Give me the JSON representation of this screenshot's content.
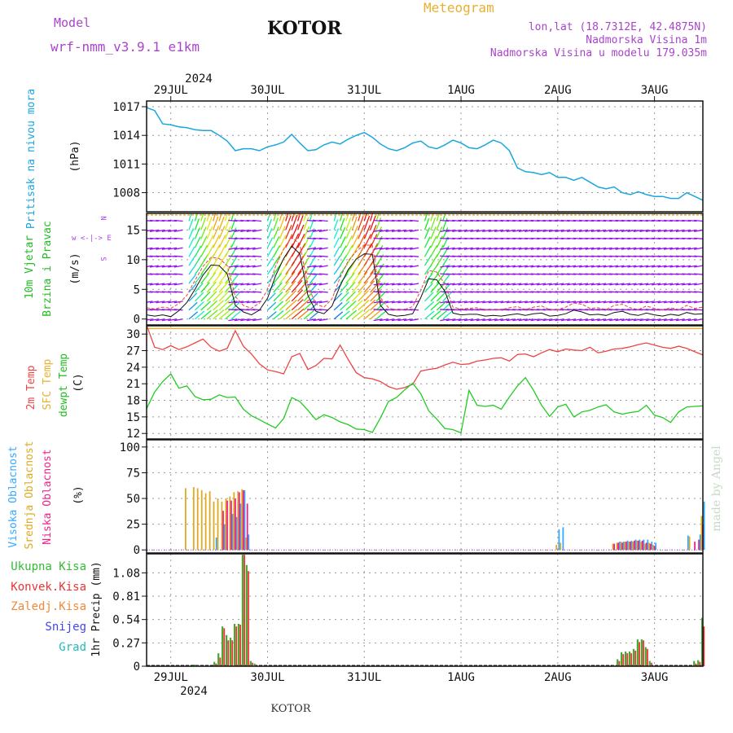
{
  "header": {
    "model_label": "Model",
    "model_name": "wrf-nmm_v3.9.1 e1km",
    "location": "KOTOR",
    "product": "Meteogram",
    "coords": "lon,lat (18.7312E, 42.4875N)",
    "elevation": "Nadmorska Visina 1m",
    "model_elevation": "Nadmorska Visina u modelu 179.035m",
    "footer_location": "KOTOR",
    "credit": "made by Angel"
  },
  "colors": {
    "pressure": "#1aa6e0",
    "temp2m": "#ee4444",
    "sfc_temp": "#e8b030",
    "dewpoint": "#22cc22",
    "high_cloud": "#33aaff",
    "mid_cloud": "#ddaa22",
    "low_cloud": "#ee2288",
    "total_precip": "#44aa33",
    "conv_precip": "#ee3333",
    "snow": "#4444ee",
    "hail": "#22bbbb",
    "wind_axis": "#aa44ee",
    "header_purple": "#aa44cc",
    "header_gold": "#e8b030"
  },
  "time_axis": {
    "top_year": "2024",
    "bottom_year": "2024",
    "days": [
      "29JUL",
      "30JUL",
      "31JUL",
      "1AUG",
      "2AUG",
      "3AUG"
    ],
    "start_hour": -6,
    "end_hour": 132
  },
  "panels": {
    "pressure": {
      "label_main": "Pritisak na nivou mora",
      "unit": "(hPa)",
      "ylim": [
        1006,
        1017.6
      ],
      "ticks": [
        1008,
        1011,
        1014,
        1017
      ]
    },
    "wind": {
      "label_line1": "10m Vjetar",
      "label_line2": "Brzina i Pravac",
      "unit": "(m/s)",
      "compass": "w <-|-> E",
      "compass_n": "N",
      "compass_s": "S",
      "ylim": [
        -1,
        17.8
      ],
      "ticks": [
        0,
        5,
        10,
        15
      ]
    },
    "temp": {
      "label_1": "2m Temp",
      "label_2": "SFC Temp",
      "label_3": "dewpt Temp",
      "unit": "(C)",
      "ylim": [
        11,
        31.5
      ],
      "ticks": [
        12,
        15,
        18,
        21,
        24,
        27,
        30
      ]
    },
    "cloud": {
      "label_1": "Visoka Oblacnost",
      "label_2": "Srednja Oblacnost",
      "label_3": "Niska Oblacnost",
      "unit": "(%)",
      "ylim": [
        -3,
        107
      ],
      "ticks": [
        0,
        25,
        50,
        75,
        100
      ]
    },
    "precip": {
      "legend_total": "Ukupna Kisa",
      "legend_conv": "Konvek.Kisa",
      "legend_frozen": "Zaledj.Kisa",
      "legend_snow": "Snijeg",
      "legend_hail": "Grad",
      "unit": "1hr Precip (mm)",
      "ylim": [
        0,
        1.3
      ],
      "ticks": [
        "0",
        "0.27",
        "0.54",
        "0.81",
        "1.08"
      ]
    }
  },
  "chart_data": [
    {
      "type": "line",
      "panel": "pressure",
      "ylabel": "Pritisak na nivou mora (hPa)",
      "x": [
        -6,
        -4,
        -2,
        0,
        2,
        4,
        6,
        8,
        10,
        12,
        14,
        16,
        18,
        20,
        22,
        24,
        26,
        28,
        30,
        32,
        34,
        36,
        38,
        40,
        42,
        44,
        46,
        48,
        50,
        52,
        54,
        56,
        58,
        60,
        62,
        64,
        66,
        68,
        70,
        72,
        74,
        76,
        78,
        80,
        82,
        84,
        86,
        88,
        90,
        92,
        94,
        96,
        98,
        100,
        102,
        104,
        106,
        108,
        110,
        112,
        114,
        116,
        118,
        120,
        122,
        124,
        126,
        128,
        130,
        132
      ],
      "series": [
        {
          "values": [
            1016.9,
            1016.6,
            1015.2,
            1015.1,
            1014.9,
            1014.8,
            1014.6,
            1014.5,
            1014.5,
            1014.0,
            1013.4,
            1012.4,
            1012.6,
            1012.6,
            1012.4,
            1012.8,
            1013.0,
            1013.3,
            1014.1,
            1013.2,
            1012.4,
            1012.5,
            1013.0,
            1013.3,
            1013.1,
            1013.6,
            1014.0,
            1014.3,
            1013.8,
            1013.1,
            1012.6,
            1012.4,
            1012.7,
            1013.2,
            1013.4,
            1012.8,
            1012.6,
            1013.0,
            1013.5,
            1013.2,
            1012.7,
            1012.6,
            1013.0,
            1013.5,
            1013.2,
            1012.4,
            1010.6,
            1010.2,
            1010.1,
            1009.9,
            1010.1,
            1009.6,
            1009.6,
            1009.3,
            1009.6,
            1009.1,
            1008.6,
            1008.4,
            1008.6,
            1008.0,
            1007.8,
            1008.1,
            1007.8,
            1007.6,
            1007.6,
            1007.4,
            1007.4,
            1008.0,
            1007.6,
            1007.2
          ]
        }
      ]
    },
    {
      "type": "line",
      "panel": "wind",
      "ylabel": "10m Vjetar Brzina i Pravac (m/s)",
      "x": [
        -6,
        -4,
        -2,
        0,
        2,
        4,
        6,
        8,
        10,
        12,
        14,
        16,
        18,
        20,
        22,
        24,
        26,
        28,
        30,
        32,
        34,
        36,
        38,
        40,
        42,
        44,
        46,
        48,
        50,
        52,
        54,
        56,
        58,
        60,
        62,
        64,
        66,
        68,
        70,
        72,
        74,
        76,
        78,
        80,
        82,
        84,
        86,
        88,
        90,
        92,
        94,
        96,
        98,
        100,
        102,
        104,
        106,
        108,
        110,
        112,
        114,
        116,
        118,
        120,
        122,
        124,
        126,
        128,
        130,
        132
      ],
      "series": [
        {
          "values": [
            0.7,
            0.5,
            0.7,
            0.4,
            1.4,
            2.8,
            5.0,
            7.4,
            9.1,
            9.0,
            7.6,
            2.3,
            1.2,
            0.7,
            1.5,
            3.5,
            7.3,
            10.2,
            12.3,
            11.0,
            4.0,
            1.3,
            0.9,
            2.2,
            5.6,
            8.3,
            10.1,
            11.0,
            10.9,
            2.3,
            0.8,
            0.5,
            0.6,
            0.9,
            3.6,
            6.8,
            6.6,
            4.7,
            1.0,
            0.7,
            0.8,
            0.8,
            0.5,
            0.6,
            0.5,
            0.7,
            0.9,
            0.6,
            0.9,
            1.0,
            0.5,
            0.6,
            0.9,
            1.5,
            1.2,
            0.7,
            0.8,
            0.6,
            1.1,
            1.3,
            0.8,
            0.6,
            1.0,
            0.7,
            0.5,
            0.8,
            0.6,
            1.1,
            0.8,
            0.9
          ]
        },
        {
          "values": [
            1.9,
            1.7,
            2.0,
            1.8,
            2.6,
            4.0,
            6.5,
            8.9,
            10.4,
            10.2,
            9.0,
            3.8,
            2.3,
            1.8,
            2.7,
            4.9,
            8.9,
            11.8,
            13.8,
            12.6,
            5.6,
            2.5,
            2.0,
            3.4,
            7.0,
            9.8,
            11.4,
            12.5,
            12.4,
            3.6,
            1.9,
            1.5,
            1.6,
            2.1,
            4.8,
            8.2,
            7.9,
            5.9,
            2.0,
            1.7,
            1.8,
            1.9,
            1.5,
            1.6,
            1.6,
            1.9,
            2.1,
            1.6,
            2.0,
            2.2,
            1.6,
            1.6,
            2.0,
            2.7,
            2.5,
            1.8,
            1.9,
            1.6,
            2.3,
            2.5,
            1.9,
            1.6,
            2.2,
            1.8,
            1.5,
            1.9,
            1.6,
            2.3,
            1.8,
            2.0
          ]
        }
      ]
    },
    {
      "type": "line",
      "panel": "temp",
      "ylabel": "(C)",
      "x": [
        -6,
        -4,
        -2,
        0,
        2,
        4,
        6,
        8,
        10,
        12,
        14,
        16,
        18,
        20,
        22,
        24,
        26,
        28,
        30,
        32,
        34,
        36,
        38,
        40,
        42,
        44,
        46,
        48,
        50,
        52,
        54,
        56,
        58,
        60,
        62,
        64,
        66,
        68,
        70,
        72,
        74,
        76,
        78,
        80,
        82,
        84,
        86,
        88,
        90,
        92,
        94,
        96,
        98,
        100,
        102,
        104,
        106,
        108,
        110,
        112,
        114,
        116,
        118,
        120,
        122,
        124,
        126,
        128,
        130,
        132
      ],
      "series": [
        {
          "values": [
            31.6,
            27.6,
            27.2,
            27.9,
            27.2,
            27.7,
            28.4,
            29.1,
            27.6,
            26.9,
            27.4,
            30.6,
            27.8,
            26.4,
            24.6,
            23.5,
            23.2,
            22.8,
            25.9,
            26.5,
            23.6,
            24.3,
            25.6,
            25.5,
            28.0,
            25.4,
            23.0,
            22.1,
            21.9,
            21.4,
            20.5,
            20.0,
            20.3,
            20.9,
            23.3,
            23.6,
            23.8,
            24.4,
            24.9,
            24.5,
            24.6,
            25.1,
            25.3,
            25.6,
            25.7,
            25.1,
            26.3,
            26.4,
            25.9,
            26.6,
            27.2,
            26.8,
            27.3,
            27.1,
            27.0,
            27.6,
            26.6,
            26.9,
            27.3,
            27.4,
            27.7,
            28.1,
            28.4,
            28.0,
            27.6,
            27.4,
            27.8,
            27.4,
            26.8,
            26.2
          ]
        },
        {
          "values": [
            16.5,
            19.5,
            21.4,
            22.8,
            20.2,
            20.6,
            18.7,
            18.1,
            18.2,
            19.0,
            18.5,
            18.6,
            16.4,
            15.2,
            14.5,
            13.7,
            13.0,
            14.7,
            18.5,
            17.8,
            16.2,
            14.5,
            15.4,
            14.9,
            14.1,
            13.6,
            12.8,
            12.7,
            12.2,
            14.8,
            17.8,
            18.5,
            19.9,
            21.1,
            19.2,
            16.1,
            14.6,
            12.9,
            12.7,
            12.1,
            19.8,
            17.1,
            16.9,
            17.1,
            16.4,
            18.6,
            20.6,
            22.1,
            19.8,
            17.1,
            15.1,
            16.8,
            17.3,
            15.0,
            15.9,
            16.2,
            16.8,
            17.2,
            15.9,
            15.5,
            15.8,
            16.0,
            17.1,
            15.3,
            14.9,
            14.0,
            15.9,
            16.8,
            16.9,
            17.0
          ]
        }
      ],
      "sfc_constant": 31.0
    },
    {
      "type": "bar",
      "panel": "cloud",
      "ylabel": "(%)",
      "x": [
        4,
        5,
        6,
        7,
        8,
        9,
        10,
        11,
        12,
        13,
        14,
        15,
        16,
        17,
        18,
        19,
        96,
        97,
        110,
        111,
        112,
        113,
        114,
        115,
        116,
        117,
        118,
        119,
        120,
        121,
        128,
        129,
        130,
        131,
        132
      ],
      "series": [
        {
          "values": [
            0,
            0,
            0,
            0,
            0,
            0,
            0,
            12,
            0,
            25,
            0,
            35,
            32,
            45,
            58,
            15,
            20,
            22,
            0,
            8,
            8,
            9,
            9,
            10,
            10,
            10,
            10,
            8,
            7,
            0,
            14,
            0,
            0,
            15,
            47
          ]
        },
        {
          "values": [
            60,
            0,
            61,
            60,
            58,
            55,
            57,
            47,
            50,
            47,
            50,
            52,
            56,
            57,
            59,
            12,
            5,
            7,
            6,
            7,
            8,
            8,
            8,
            8,
            9,
            8,
            6,
            7,
            5,
            0,
            0,
            13,
            0,
            0,
            33
          ]
        },
        {
          "values": [
            0,
            0,
            0,
            0,
            0,
            0,
            0,
            0,
            0,
            38,
            48,
            48,
            50,
            56,
            58,
            45,
            0,
            0,
            6,
            7,
            7,
            8,
            8,
            9,
            9,
            9,
            7,
            6,
            4,
            0,
            0,
            0,
            8,
            10,
            25
          ]
        }
      ]
    },
    {
      "type": "bar",
      "panel": "precip",
      "ylabel": "1hr Precip (mm)",
      "x": [
        6,
        7,
        11,
        12,
        13,
        14,
        15,
        16,
        17,
        18,
        19,
        20,
        21,
        110,
        111,
        112,
        113,
        114,
        115,
        116,
        117,
        118,
        119,
        130,
        131,
        132
      ],
      "series": [
        {
          "values": [
            0.02,
            0.01,
            0.05,
            0.15,
            0.46,
            0.36,
            0.33,
            0.49,
            0.49,
            1.29,
            1.17,
            0.06,
            0.03,
            0.01,
            0.08,
            0.16,
            0.17,
            0.17,
            0.2,
            0.31,
            0.31,
            0.22,
            0.06,
            0.06,
            0.07,
            0.56
          ]
        },
        {
          "values": [
            0.01,
            0.0,
            0.03,
            0.1,
            0.44,
            0.3,
            0.3,
            0.46,
            0.48,
            1.29,
            1.1,
            0.04,
            0.0,
            0.0,
            0.06,
            0.14,
            0.15,
            0.15,
            0.18,
            0.28,
            0.3,
            0.2,
            0.04,
            0.03,
            0.05,
            0.46
          ]
        }
      ]
    }
  ]
}
